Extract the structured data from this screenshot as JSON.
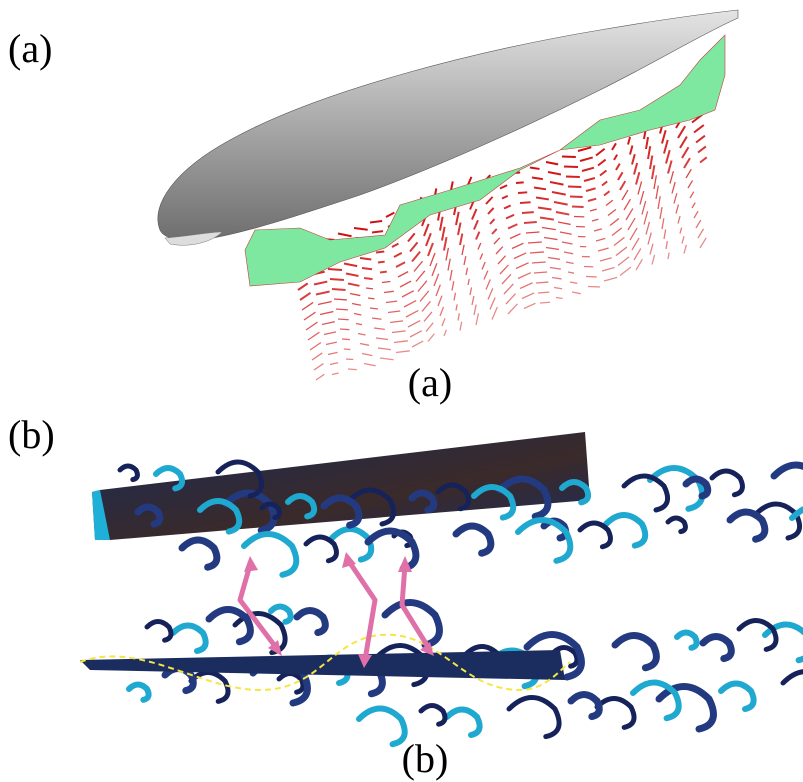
{
  "panels": [
    {
      "label": "(a)",
      "caption": "(a)"
    },
    {
      "label": "(b)",
      "caption": "(b)"
    }
  ]
}
